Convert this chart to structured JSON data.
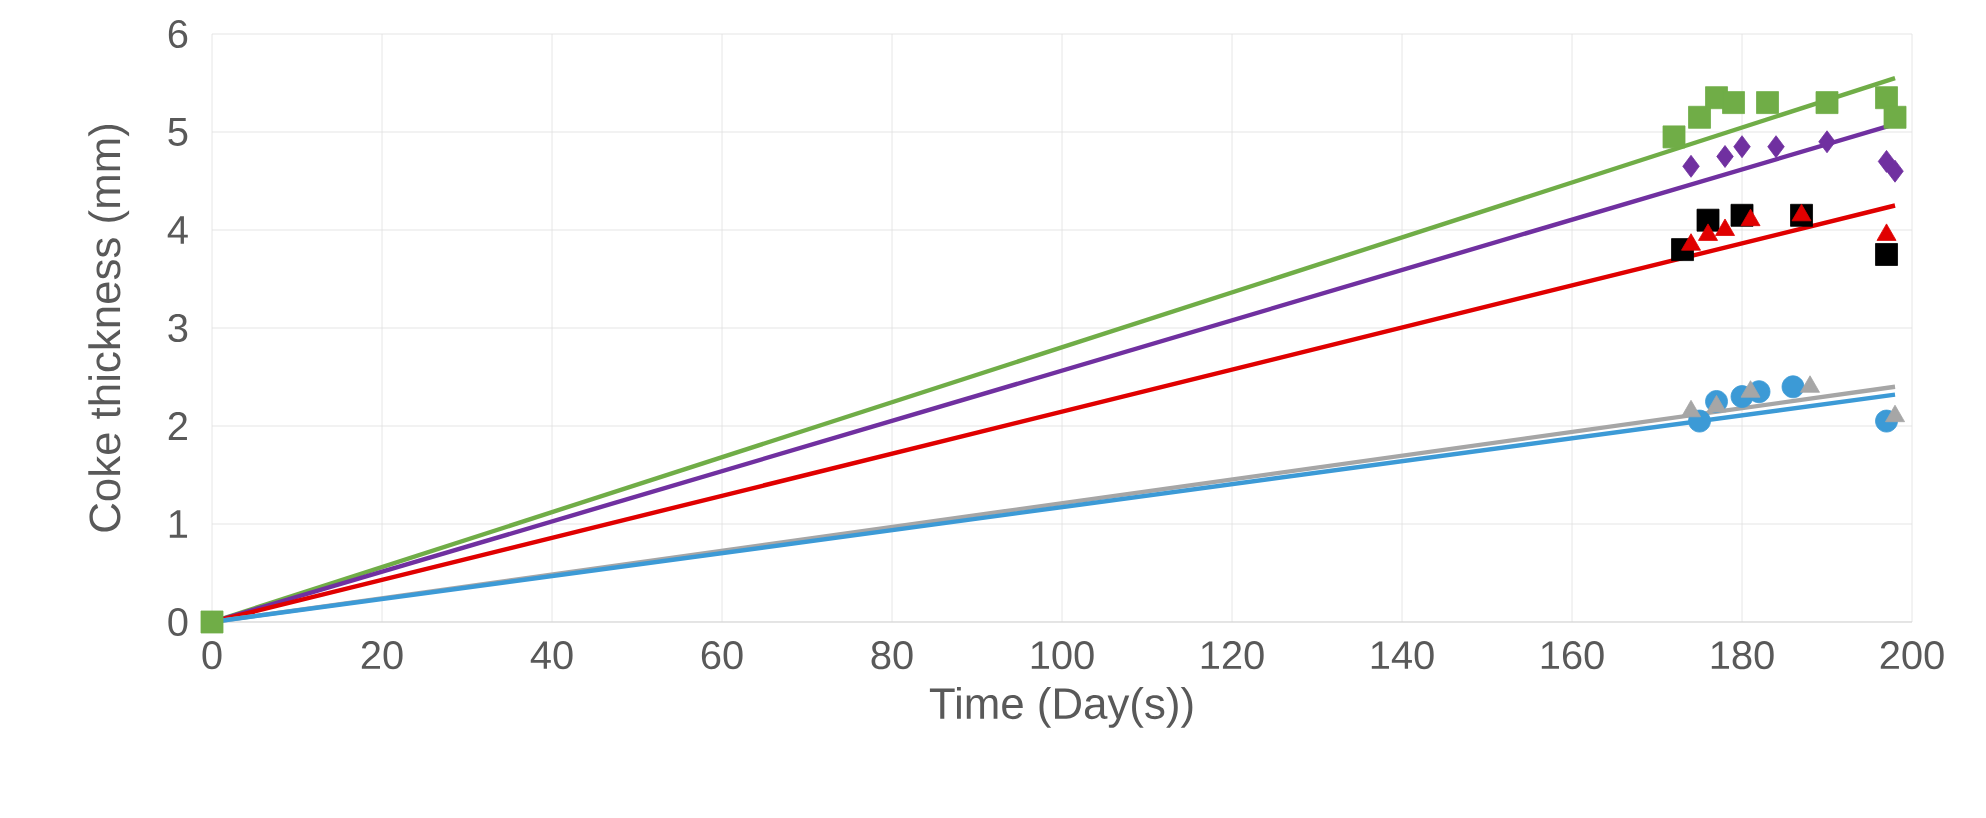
{
  "chart_data": {
    "type": "scatter",
    "xlabel": "Time (Day(s))",
    "ylabel": "Coke thickness (mm)",
    "xlim": [
      0,
      200
    ],
    "ylim": [
      0,
      6
    ],
    "xticks": [
      0,
      20,
      40,
      60,
      80,
      100,
      120,
      140,
      160,
      180,
      200
    ],
    "yticks": [
      0,
      1,
      2,
      3,
      4,
      5,
      6
    ],
    "grid": true,
    "series": [
      {
        "type": "line",
        "marker": "none",
        "color": "#70ad47",
        "x": [
          0,
          198
        ],
        "values": [
          0,
          5.55
        ]
      },
      {
        "type": "line",
        "marker": "none",
        "color": "#7030a0",
        "x": [
          0,
          198
        ],
        "values": [
          0,
          5.08
        ]
      },
      {
        "type": "line",
        "marker": "none",
        "color": "#e00000",
        "x": [
          0,
          198
        ],
        "values": [
          0,
          4.25
        ]
      },
      {
        "type": "line",
        "marker": "none",
        "color": "#a6a6a6",
        "x": [
          0,
          198
        ],
        "values": [
          0,
          2.4
        ]
      },
      {
        "type": "line",
        "marker": "none",
        "color": "#3c9ad6",
        "x": [
          0,
          198
        ],
        "values": [
          0,
          2.32
        ]
      },
      {
        "marker": "square",
        "color": "#70ad47",
        "x": [
          0,
          172,
          175,
          177,
          179,
          183,
          190,
          197,
          198
        ],
        "values": [
          0,
          4.95,
          5.15,
          5.35,
          5.3,
          5.3,
          5.3,
          5.35,
          5.15
        ]
      },
      {
        "marker": "diamond",
        "color": "#7030a0",
        "x": [
          174,
          178,
          180,
          184,
          190,
          197,
          198
        ],
        "values": [
          4.65,
          4.75,
          4.85,
          4.85,
          4.9,
          4.7,
          4.6
        ]
      },
      {
        "marker": "square",
        "color": "#000000",
        "x": [
          173,
          176,
          180,
          187,
          197
        ],
        "values": [
          3.8,
          4.1,
          4.15,
          4.15,
          3.75
        ]
      },
      {
        "marker": "triangle",
        "color": "#e00000",
        "x": [
          174,
          176,
          178,
          181,
          187,
          197
        ],
        "values": [
          3.85,
          3.95,
          4.0,
          4.1,
          4.15,
          3.95
        ]
      },
      {
        "marker": "circle",
        "color": "#3c9ad6",
        "x": [
          175,
          177,
          180,
          182,
          186,
          197
        ],
        "values": [
          2.05,
          2.25,
          2.3,
          2.35,
          2.4,
          2.05
        ]
      },
      {
        "marker": "triangle",
        "color": "#a6a6a6",
        "x": [
          174,
          177,
          181,
          188,
          198
        ],
        "values": [
          2.15,
          2.2,
          2.35,
          2.4,
          2.1
        ]
      }
    ]
  }
}
